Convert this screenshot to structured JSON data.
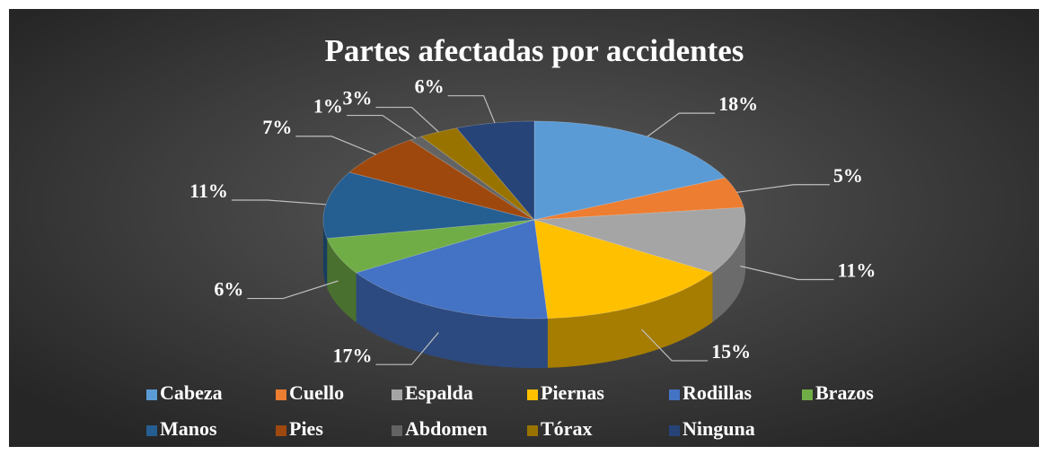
{
  "chart_data": {
    "type": "pie",
    "title": "Partes afectadas por accidentes",
    "categories": [
      "Cabeza",
      "Cuello",
      "Espalda",
      "Piernas",
      "Rodillas",
      "Brazos",
      "Manos",
      "Pies",
      "Abdomen",
      "Tórax",
      "Ninguna"
    ],
    "values": [
      18,
      5,
      11,
      15,
      17,
      6,
      11,
      7,
      1,
      3,
      6
    ],
    "value_labels": [
      "18%",
      "5%",
      "11%",
      "15%",
      "17%",
      "6%",
      "11%",
      "7%",
      "1%",
      "3%",
      "6%"
    ],
    "colors": [
      "#5b9bd5",
      "#ed7d31",
      "#a5a5a5",
      "#ffc000",
      "#4472c4",
      "#70ad47",
      "#255e91",
      "#9e480e",
      "#636363",
      "#997300",
      "#264478"
    ],
    "legend": "bottom"
  }
}
